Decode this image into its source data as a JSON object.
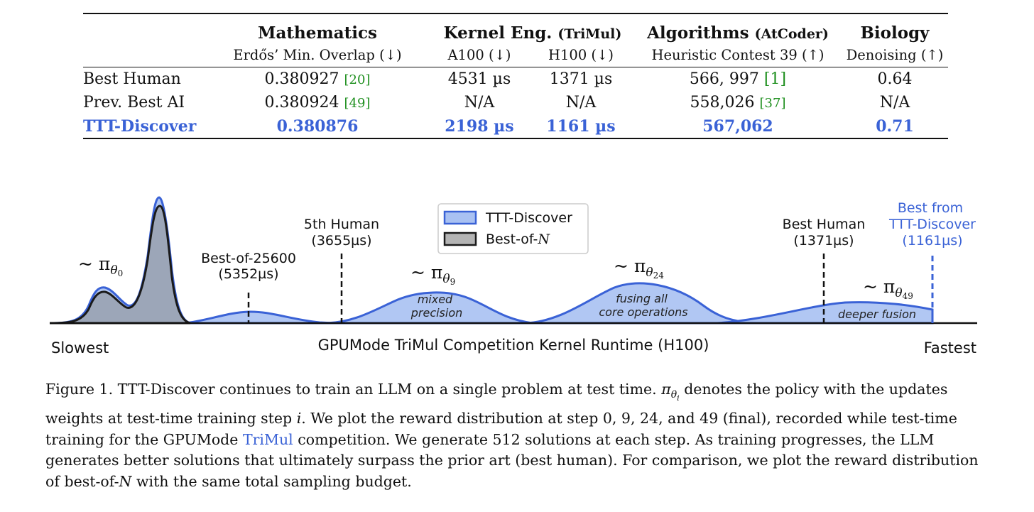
{
  "table": {
    "domains": [
      {
        "name": "Mathematics",
        "sub": ""
      },
      {
        "name": "Kernel Eng.",
        "sub": "(TriMul)"
      },
      {
        "name": "Algorithms",
        "sub": "(AtCoder)"
      },
      {
        "name": "Biology",
        "sub": ""
      }
    ],
    "metrics": [
      "Erdős’ Min. Overlap (↓)",
      "A100 (↓)",
      "H100 (↓)",
      "Heuristic Contest 39 (↑)",
      "Denoising (↑)"
    ],
    "rows": [
      {
        "label": "Best Human",
        "values": [
          {
            "v": "0.380927",
            "cite": "[20]"
          },
          {
            "v": "4531 µs",
            "cite": ""
          },
          {
            "v": "1371 µs",
            "cite": ""
          },
          {
            "v": "566, 997",
            "cite": "[1]"
          },
          {
            "v": "0.64",
            "cite": ""
          }
        ]
      },
      {
        "label": "Prev. Best AI",
        "values": [
          {
            "v": "0.380924",
            "cite": "[49]"
          },
          {
            "v": "N/A",
            "cite": ""
          },
          {
            "v": "N/A",
            "cite": ""
          },
          {
            "v": "558,026",
            "cite": "[37]"
          },
          {
            "v": "N/A",
            "cite": ""
          }
        ]
      },
      {
        "label": "TTT-Discover",
        "values": [
          {
            "v": "0.380876",
            "cite": ""
          },
          {
            "v": "2198 µs",
            "cite": ""
          },
          {
            "v": "1161 µs",
            "cite": ""
          },
          {
            "v": "567,062",
            "cite": ""
          },
          {
            "v": "0.71",
            "cite": ""
          }
        ]
      }
    ]
  },
  "chart_data": {
    "type": "area",
    "title": "",
    "xlabel": "GPUMode TriMul Competition Kernel Runtime (H100)",
    "x_left_label": "Slowest",
    "x_right_label": "Fastest",
    "legend": {
      "placement": "top-center",
      "entries": [
        {
          "name": "TTT-Discover",
          "fill": "#a9c1f2",
          "stroke": "#3a62d6"
        },
        {
          "name": "Best-of-N",
          "fill": "#b4b4b4",
          "stroke": "#1a1a1a"
        }
      ]
    },
    "distributions": [
      {
        "name": "~ πθ0",
        "sym": "π",
        "sub": "θ",
        "subsub": "0",
        "caption": ""
      },
      {
        "name": "~ πθ9",
        "sym": "π",
        "sub": "θ",
        "subsub": "9",
        "caption": "mixed precision"
      },
      {
        "name": "~ πθ24",
        "sym": "π",
        "sub": "θ",
        "subsub": "24",
        "caption": "fusing all core operations"
      },
      {
        "name": "~ πθ49",
        "sym": "π",
        "sub": "θ",
        "subsub": "49",
        "caption": "deeper fusion"
      }
    ],
    "reference_lines": [
      {
        "label": "Best-of-25600",
        "value": "(5352µs)"
      },
      {
        "label": "5th Human",
        "value": "(3655µs)"
      },
      {
        "label": "Best Human",
        "value": "(1371µs)"
      },
      {
        "label": "Best from TTT-Discover",
        "value": "(1161µs)"
      }
    ]
  },
  "caption": {
    "prefix": "Figure 1. TTT-Discover continues to train an LLM on a single problem at test time. ",
    "pi_sym": "π",
    "pi_sub": "θ",
    "pi_subsub": "i",
    "after_pi": " denotes the policy with the updates weights at test-time training step ",
    "step_var": "i",
    "after_step": ". We plot the reward distribution at step 0, 9, 24, and 49 (final), recorded while test-time training for the GPUMode ",
    "link": "TriMul",
    "suffix": " competition. We generate 512 solutions at each step. As training progresses, the LLM generates better solutions that ultimately surpass the prior art (best human). For comparison, we plot the reward distribution of best-of-",
    "n_var": "N",
    "end": " with the same total sampling budget."
  },
  "colors": {
    "ttt_blue": "#3a62d6",
    "ttt_fill": "#a9c1f2",
    "bon_fill": "#9aa2b1",
    "cite_green": "#1e8f1e"
  }
}
